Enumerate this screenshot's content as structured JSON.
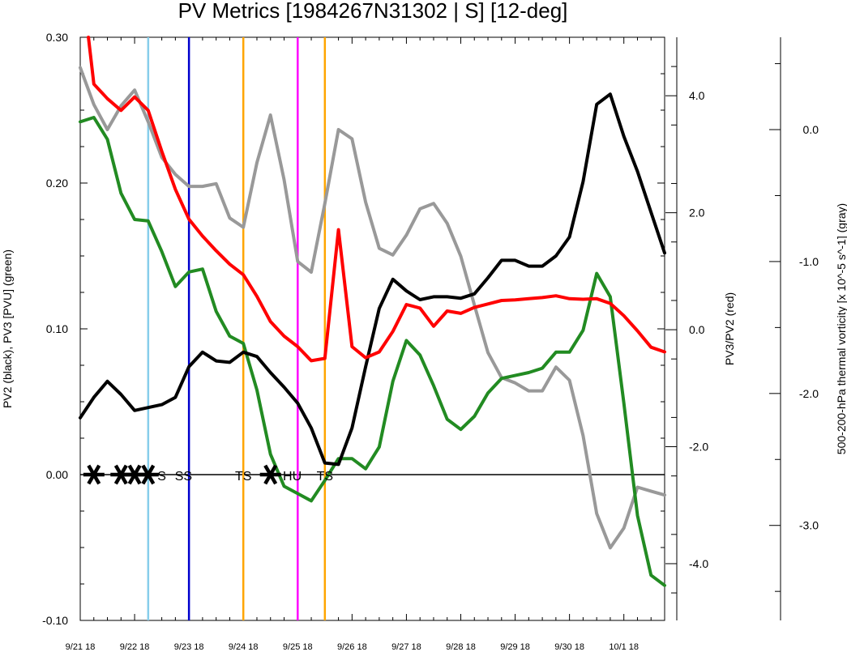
{
  "chart_data": {
    "type": "line",
    "title": "PV Metrics [1984267N31302 | S] [12-deg]",
    "ylabel_left": "PV2 (black), PV3 [PVU] (green)",
    "ylabel_right1": "PV3/PV2 (red)",
    "ylabel_right2": "500-200-hPa thermal vorticity [x 10^-5 s^-1] (gray)",
    "x_start_day": 0,
    "x_end_day": 10.75,
    "x_ticks": [
      {
        "day": 0,
        "label": "9/21 18"
      },
      {
        "day": 1,
        "label": "9/22 18"
      },
      {
        "day": 2,
        "label": "9/23 18"
      },
      {
        "day": 3,
        "label": "9/24 18"
      },
      {
        "day": 4,
        "label": "9/25 18"
      },
      {
        "day": 5,
        "label": "9/26 18"
      },
      {
        "day": 6,
        "label": "9/27 18"
      },
      {
        "day": 7,
        "label": "9/28 18"
      },
      {
        "day": 8,
        "label": "9/29 18"
      },
      {
        "day": 9,
        "label": "9/30 18"
      },
      {
        "day": 10,
        "label": "10/1 18"
      }
    ],
    "ylim_left": [
      -0.1,
      0.3
    ],
    "yticks_left": [
      {
        "v": 0.3,
        "label": "0.30"
      },
      {
        "v": 0.2,
        "label": "0.20"
      },
      {
        "v": 0.1,
        "label": "0.10"
      },
      {
        "v": 0.0,
        "label": "0.00"
      },
      {
        "v": -0.1,
        "label": "-0.10"
      }
    ],
    "ylim_red": [
      -4.97,
      5.0
    ],
    "yticks_red": [
      {
        "v": 4.0,
        "label": "4.0"
      },
      {
        "v": 2.0,
        "label": "2.0"
      },
      {
        "v": 0.0,
        "label": "0.0"
      },
      {
        "v": -2.0,
        "label": "-2.0"
      },
      {
        "v": -4.0,
        "label": "-4.0"
      }
    ],
    "ylim_gray": [
      -3.72,
      0.7
    ],
    "yticks_gray": [
      {
        "v": 0.0,
        "label": "0.0"
      },
      {
        "v": -1.0,
        "label": "-1.0"
      },
      {
        "v": -2.0,
        "label": "-2.0"
      },
      {
        "v": -3.0,
        "label": "-3.0"
      }
    ],
    "series": [
      {
        "name": "PV2",
        "color": "#000000",
        "axis": "left",
        "x": [
          0,
          0.25,
          0.5,
          0.75,
          1,
          1.25,
          1.5,
          1.75,
          2,
          2.25,
          2.5,
          2.75,
          3,
          3.25,
          3.5,
          3.75,
          4,
          4.25,
          4.5,
          4.75,
          5,
          5.25,
          5.5,
          5.75,
          6,
          6.25,
          6.5,
          6.75,
          7,
          7.25,
          7.5,
          7.75,
          8,
          8.25,
          8.5,
          8.75,
          9,
          9.25,
          9.5,
          9.75,
          10,
          10.25,
          10.5,
          10.75
        ],
        "values": [
          0.039,
          0.053,
          0.064,
          0.055,
          0.044,
          0.046,
          0.048,
          0.053,
          0.074,
          0.084,
          0.078,
          0.077,
          0.084,
          0.081,
          0.07,
          0.06,
          0.049,
          0.032,
          0.008,
          0.007,
          0.032,
          0.074,
          0.114,
          0.134,
          0.126,
          0.12,
          0.122,
          0.122,
          0.121,
          0.124,
          0.135,
          0.147,
          0.147,
          0.143,
          0.143,
          0.15,
          0.163,
          0.201,
          0.254,
          0.261,
          0.232,
          0.208,
          0.18,
          0.152
        ]
      },
      {
        "name": "PV3",
        "color": "#228b22",
        "axis": "left",
        "x": [
          0,
          0.25,
          0.5,
          0.75,
          1,
          1.25,
          1.5,
          1.75,
          2,
          2.25,
          2.5,
          2.75,
          3,
          3.25,
          3.5,
          3.75,
          4,
          4.25,
          4.5,
          4.75,
          5,
          5.25,
          5.5,
          5.75,
          6,
          6.25,
          6.5,
          6.75,
          7,
          7.25,
          7.5,
          7.75,
          8,
          8.25,
          8.5,
          8.75,
          9,
          9.25,
          9.5,
          9.75,
          10,
          10.25,
          10.5,
          10.75
        ],
        "values": [
          0.242,
          0.245,
          0.23,
          0.193,
          0.175,
          0.174,
          0.153,
          0.129,
          0.139,
          0.141,
          0.112,
          0.095,
          0.09,
          0.058,
          0.014,
          -0.008,
          -0.013,
          -0.018,
          -0.004,
          0.011,
          0.011,
          0.004,
          0.019,
          0.064,
          0.092,
          0.082,
          0.061,
          0.038,
          0.031,
          0.04,
          0.056,
          0.066,
          0.068,
          0.07,
          0.073,
          0.084,
          0.084,
          0.099,
          0.138,
          0.122,
          0.049,
          -0.028,
          -0.069,
          -0.076
        ]
      },
      {
        "name": "PV3/PV2",
        "color": "#ff0000",
        "axis": "red",
        "x": [
          0.15,
          0.25,
          0.5,
          0.75,
          1,
          1.25,
          1.5,
          1.75,
          2,
          2.25,
          2.5,
          2.75,
          3,
          3.25,
          3.5,
          3.75,
          4,
          4.25,
          4.5,
          4.75,
          5,
          5.25,
          5.5,
          5.75,
          6,
          6.25,
          6.5,
          6.75,
          7,
          7.25,
          7.5,
          7.75,
          8,
          8.25,
          8.5,
          8.75,
          9,
          9.25,
          9.5,
          9.75,
          10,
          10.25,
          10.5,
          10.75
        ],
        "values": [
          5.0,
          4.2,
          3.95,
          3.75,
          3.98,
          3.75,
          3.05,
          2.4,
          1.89,
          1.6,
          1.35,
          1.12,
          0.94,
          0.57,
          0.14,
          -0.11,
          -0.29,
          -0.53,
          -0.49,
          1.71,
          -0.29,
          -0.48,
          -0.38,
          -0.03,
          0.43,
          0.37,
          0.06,
          0.32,
          0.28,
          0.38,
          0.44,
          0.5,
          0.51,
          0.53,
          0.55,
          0.58,
          0.53,
          0.52,
          0.53,
          0.45,
          0.24,
          -0.02,
          -0.3,
          -0.38
        ]
      },
      {
        "name": "thermal vorticity",
        "color": "#999999",
        "axis": "gray",
        "x": [
          0,
          0.25,
          0.5,
          0.75,
          1,
          1.25,
          1.5,
          1.75,
          2,
          2.25,
          2.5,
          2.75,
          3,
          3.25,
          3.5,
          3.75,
          4,
          4.25,
          4.5,
          4.75,
          5,
          5.25,
          5.5,
          5.75,
          6,
          6.25,
          6.5,
          6.75,
          7,
          7.25,
          7.5,
          7.75,
          8,
          8.25,
          8.5,
          8.75,
          9,
          9.25,
          9.5,
          9.75,
          10,
          10.25,
          10.5,
          10.75
        ],
        "values": [
          0.47,
          0.19,
          0.0,
          0.18,
          0.3,
          0.06,
          -0.21,
          -0.34,
          -0.43,
          -0.43,
          -0.41,
          -0.67,
          -0.74,
          -0.25,
          0.11,
          -0.38,
          -1.0,
          -1.08,
          -0.56,
          0.0,
          -0.07,
          -0.55,
          -0.9,
          -0.95,
          -0.8,
          -0.6,
          -0.56,
          -0.71,
          -0.96,
          -1.33,
          -1.69,
          -1.88,
          -1.92,
          -1.98,
          -1.98,
          -1.8,
          -1.9,
          -2.32,
          -2.91,
          -3.17,
          -3.02,
          -2.71,
          -2.74,
          -2.77
        ]
      }
    ],
    "vlines": [
      {
        "day": 1.25,
        "color": "#87ceeb"
      },
      {
        "day": 2.0,
        "color": "#0000cd"
      },
      {
        "day": 3.0,
        "color": "#ffa500"
      },
      {
        "day": 4.0,
        "color": "#ff00ff"
      },
      {
        "day": 4.5,
        "color": "#ffa500"
      }
    ],
    "asterisks": [
      0.25,
      0.75,
      1.0,
      1.25,
      3.5
    ],
    "stage_labels": [
      {
        "day": 1.5,
        "text": "S"
      },
      {
        "day": 1.9,
        "text": "SS"
      },
      {
        "day": 3.0,
        "text": "TS"
      },
      {
        "day": 3.9,
        "text": "HU"
      },
      {
        "day": 4.5,
        "text": "TS"
      }
    ]
  }
}
